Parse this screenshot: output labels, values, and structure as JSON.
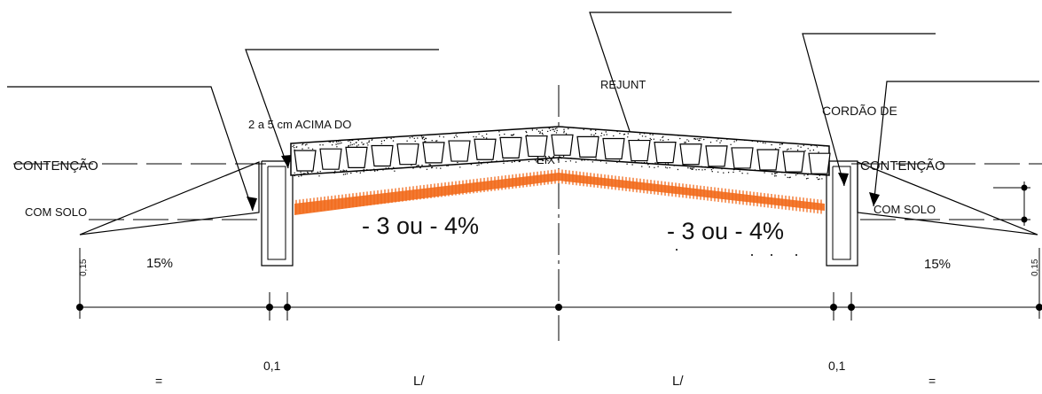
{
  "labels": {
    "callout_top_left": "2 a 5 cm ACIMA DO",
    "callout_rejunt": "REJUNT",
    "callout_cordao": "CORDÃO DE",
    "contencao_left": "CONTENÇÃO",
    "com_solo_left": "COM SOLO",
    "contencao_right": "CONTENÇÃO",
    "com_solo_right": "COM SOLO",
    "eix": "EIX",
    "slope_left": "- 3 ou - 4%",
    "slope_right": "- 3 ou - 4%",
    "pct_left": "15%",
    "pct_right": "15%",
    "h_left": "0,15",
    "h_right": "0,15"
  },
  "dimensions": {
    "eq_left": "=",
    "curb_left": "0,1",
    "half_left": "L/",
    "half_right": "L/",
    "curb_right": "0,1",
    "eq_right": "="
  },
  "colors": {
    "line": "#000000",
    "sand_layer": "#f26a1b",
    "paving": "#000000"
  }
}
